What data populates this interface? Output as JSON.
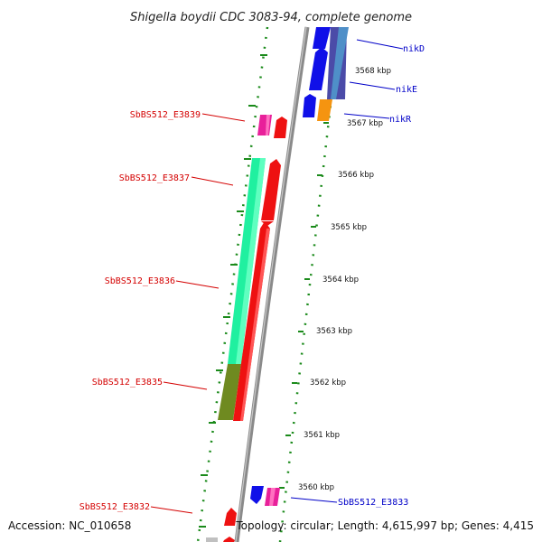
{
  "title": "Shigella boydii CDC 3083-94, complete genome",
  "footer": {
    "accession": "Accession: NC_010658",
    "topology": "Topology: circular; Length: 4,615,997 bp; Genes: 4,415"
  },
  "colors": {
    "backbone": "#8a8a8a",
    "tick": "#1a8a1a",
    "label_red": "#d40000",
    "label_blue": "#0000c8"
  },
  "ruler": {
    "unit": "kbp",
    "labels": [
      "3568 kbp",
      "3567 kbp",
      "3566 kbp",
      "3565 kbp",
      "3564 kbp",
      "3563 kbp",
      "3562 kbp",
      "3561 kbp",
      "3560 kbp"
    ]
  },
  "genes": [
    {
      "name": "nikD",
      "color": "blue"
    },
    {
      "name": "nikE",
      "color": "blue"
    },
    {
      "name": "nikR",
      "color": "blue"
    },
    {
      "name": "SbBS512_E3839",
      "color": "red"
    },
    {
      "name": "SbBS512_E3837",
      "color": "red"
    },
    {
      "name": "SbBS512_E3836",
      "color": "red"
    },
    {
      "name": "SbBS512_E3835",
      "color": "red"
    },
    {
      "name": "SbBS512_E3833",
      "color": "blue"
    },
    {
      "name": "SbBS512_E3832",
      "color": "red"
    }
  ]
}
